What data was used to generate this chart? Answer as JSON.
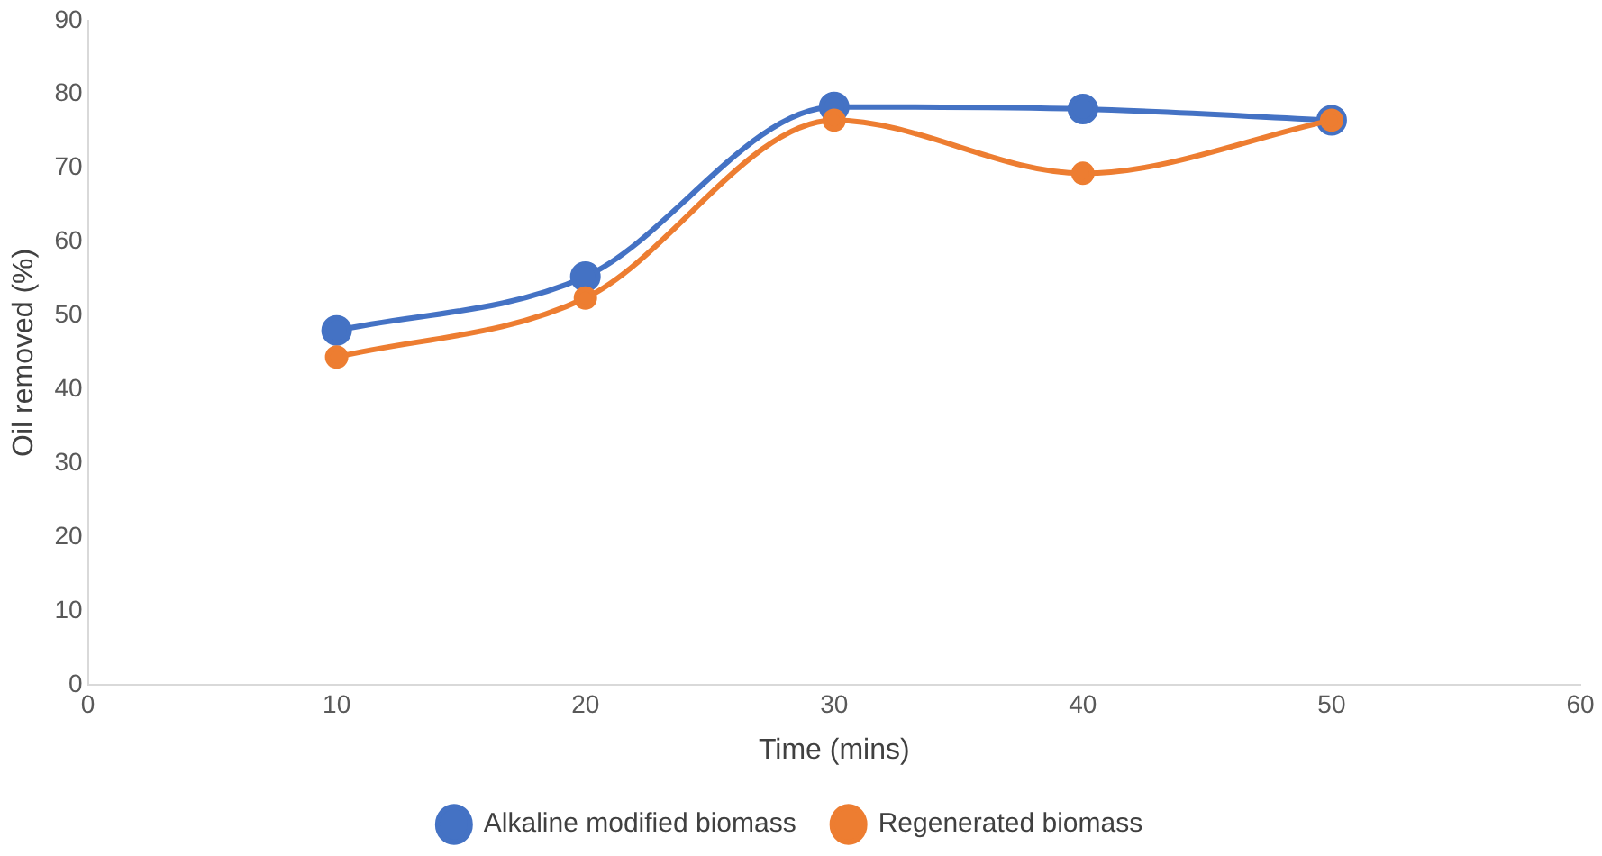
{
  "chart_data": {
    "type": "line",
    "xlabel": "Time (mins)",
    "ylabel": "Oil removed (%)",
    "x": [
      10,
      20,
      30,
      40,
      50
    ],
    "series": [
      {
        "name": "Alkaline modified biomass",
        "color": "#4472c4",
        "values": [
          48,
          55.3,
          78.3,
          78,
          76.5
        ]
      },
      {
        "name": "Regenerated biomass",
        "color": "#ed7d31",
        "values": [
          44.4,
          52.4,
          76.5,
          69.3,
          76.5
        ]
      }
    ],
    "xlim": [
      0,
      60
    ],
    "xticks": [
      0,
      10,
      20,
      30,
      40,
      50,
      60
    ],
    "ylim": [
      0,
      90
    ],
    "yticks": [
      0,
      10,
      20,
      30,
      40,
      50,
      60,
      70,
      80,
      90
    ],
    "grid": false,
    "legend": "bottom",
    "marker": "circle",
    "line_style": "solid"
  }
}
